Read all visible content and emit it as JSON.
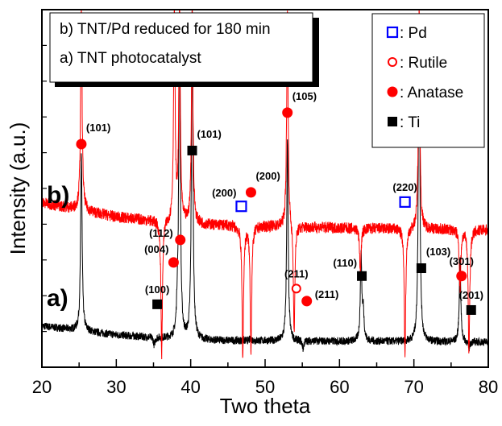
{
  "chart_data": {
    "type": "line",
    "xlabel": "Two theta",
    "ylabel": "Intensity (a.u.)",
    "xlim": [
      20,
      80
    ],
    "xticks": [
      20,
      30,
      40,
      50,
      60,
      70,
      80
    ],
    "ylim": [
      0,
      100
    ],
    "y_tick_labels_shown": false,
    "grid": false,
    "series": [
      {
        "name": "a) TNT photocatalyst",
        "tag": "a)",
        "color": "#000000",
        "baseline": [
          [
            20,
            11.5
          ],
          [
            30,
            9
          ],
          [
            40,
            7.5
          ],
          [
            80,
            7
          ]
        ],
        "peaks": [
          [
            25.3,
            60
          ],
          [
            35.1,
            6
          ],
          [
            38.2,
            14
          ],
          [
            38.5,
            100
          ],
          [
            40.2,
            100
          ],
          [
            48.1,
            8
          ],
          [
            53.0,
            63
          ],
          [
            54.0,
            7
          ],
          [
            55.1,
            5
          ],
          [
            62.9,
            31
          ],
          [
            63.2,
            15
          ],
          [
            70.7,
            100
          ],
          [
            76.2,
            30
          ],
          [
            77.4,
            5
          ]
        ]
      },
      {
        "name": "b) TNT/Pd reduced for 180 min",
        "tag": "b)",
        "color": "#ff0000",
        "baseline": [
          [
            20,
            46
          ],
          [
            30,
            42
          ],
          [
            40,
            40
          ],
          [
            60,
            39
          ],
          [
            80,
            38.5
          ]
        ],
        "peaks": [
          [
            25.3,
            100
          ],
          [
            36.1,
            3
          ],
          [
            37.8,
            100
          ],
          [
            38.5,
            100
          ],
          [
            40.2,
            100
          ],
          [
            47.0,
            3
          ],
          [
            48.1,
            5
          ],
          [
            53.0,
            100
          ],
          [
            53.9,
            9
          ],
          [
            62.8,
            27
          ],
          [
            68.8,
            4
          ],
          [
            70.7,
            100
          ],
          [
            76.2,
            22
          ],
          [
            77.4,
            4
          ]
        ]
      }
    ],
    "annotations": [
      {
        "marker": "anatase",
        "x": 25.3,
        "y": 62.4,
        "label": "(101)",
        "pos": "above-right"
      },
      {
        "marker": "ti",
        "x": 40.2,
        "y": 60.6,
        "label": "(101)",
        "pos": "above-right"
      },
      {
        "marker": "anatase",
        "x": 53.0,
        "y": 71.2,
        "label": "(105)",
        "pos": "above-right"
      },
      {
        "marker": "pd",
        "x": 46.8,
        "y": 45.0,
        "label": "(200)",
        "pos": "above-left"
      },
      {
        "marker": "anatase",
        "x": 48.1,
        "y": 48.9,
        "label": "(200)",
        "pos": "above-right"
      },
      {
        "marker": "pd",
        "x": 68.8,
        "y": 46.2,
        "label": "(220)",
        "pos": "above"
      },
      {
        "marker": "anatase",
        "x": 38.6,
        "y": 35.6,
        "label": "(112)",
        "pos": "left"
      },
      {
        "marker": "anatase",
        "x": 37.7,
        "y": 29.3,
        "label": "(004)",
        "pos": "above-left"
      },
      {
        "marker": "ti",
        "x": 35.5,
        "y": 17.6,
        "label": "(100)",
        "pos": "above"
      },
      {
        "marker": "rutile",
        "x": 54.2,
        "y": 22.0,
        "label": "(211)",
        "pos": "above"
      },
      {
        "marker": "anatase",
        "x": 55.6,
        "y": 18.5,
        "label": "(211)",
        "pos": "right"
      },
      {
        "marker": "ti",
        "x": 63.0,
        "y": 25.5,
        "label": "(110)",
        "pos": "above-left"
      },
      {
        "marker": "ti",
        "x": 71.0,
        "y": 27.7,
        "label": "(103)",
        "pos": "above-right"
      },
      {
        "marker": "anatase",
        "x": 76.4,
        "y": 25.5,
        "label": "(301)",
        "pos": "above"
      },
      {
        "marker": "ti",
        "x": 77.7,
        "y": 16.0,
        "label": "(201)",
        "pos": "above"
      }
    ],
    "legend_samples": {
      "position": "top-left",
      "entries": [
        "b) TNT/Pd reduced for 180 min",
        "a) TNT photocatalyst"
      ]
    },
    "legend_phases": {
      "position": "top-right",
      "entries": [
        {
          "marker": "pd",
          "label": ": Pd"
        },
        {
          "marker": "rutile",
          "label": ": Rutile"
        },
        {
          "marker": "anatase",
          "label": ": Anatase"
        },
        {
          "marker": "ti",
          "label": ": Ti"
        }
      ]
    },
    "marker_colors": {
      "pd": "#0000ff",
      "rutile": "#ff0000",
      "anatase": "#ff0000",
      "ti": "#000000"
    }
  }
}
